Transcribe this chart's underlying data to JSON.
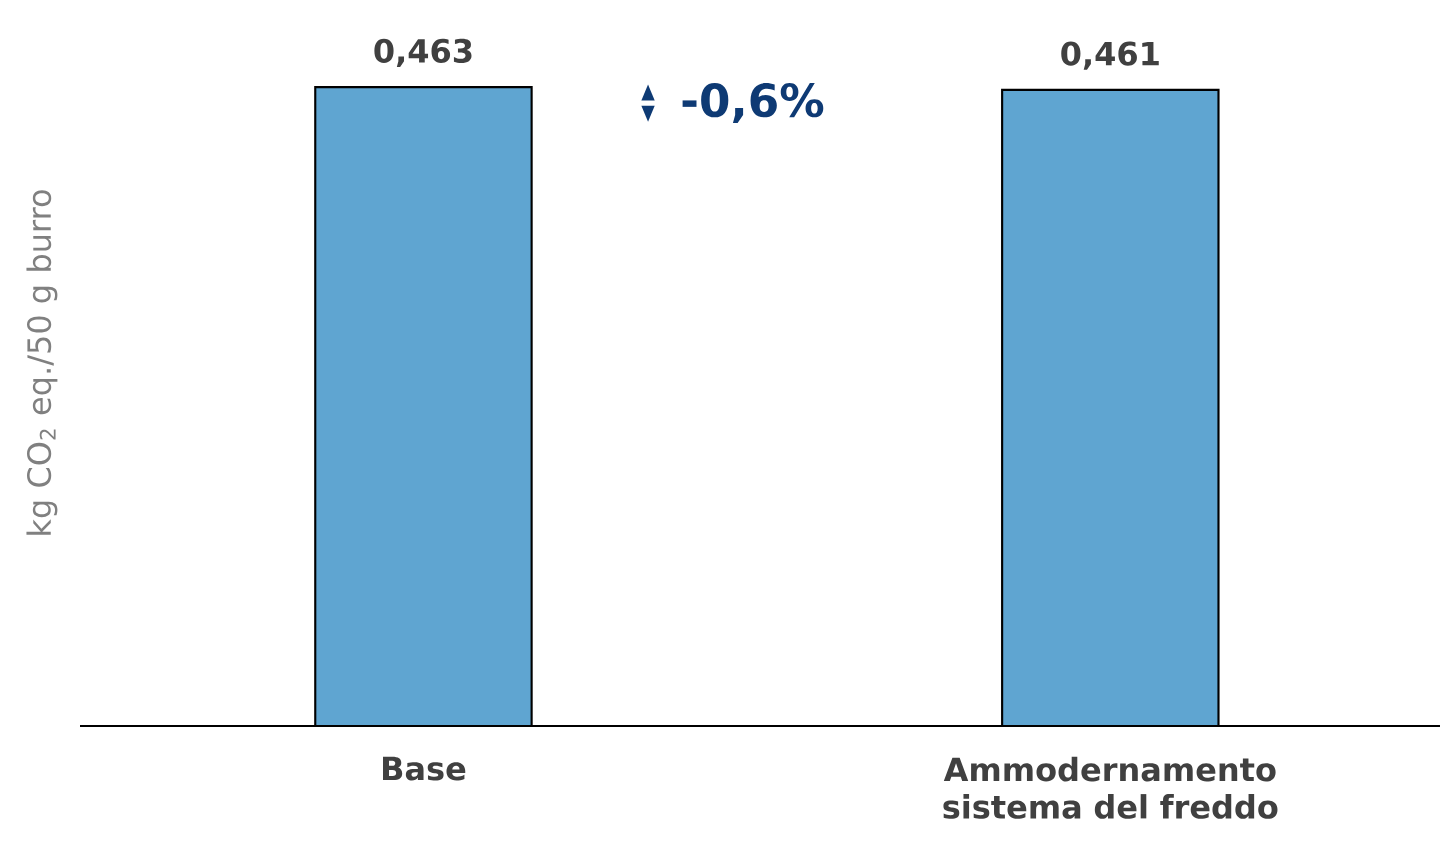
{
  "chart_data": {
    "type": "bar",
    "ylabel": "kg CO$_{2}$ eq./50 g burro",
    "categories": [
      "Base",
      "Ammodernamento sistema del freddo"
    ],
    "values": [
      0.463,
      0.461
    ],
    "value_labels": [
      "0,463",
      "0,461"
    ],
    "color": "#5fa5d1",
    "tick_labels": "x",
    "annotations": [
      "-0,6%"
    ]
  }
}
